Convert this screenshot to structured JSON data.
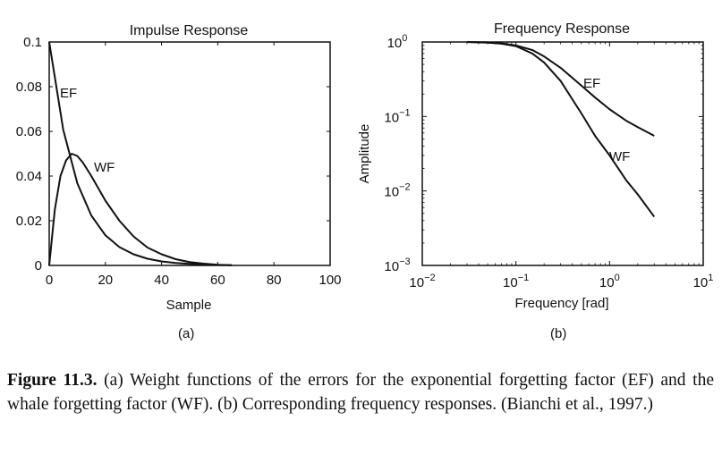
{
  "chart_data": [
    {
      "type": "line",
      "title": "Impulse Response",
      "xlabel": "Sample",
      "ylabel": "",
      "panel_label": "(a)",
      "xlim": [
        0,
        100
      ],
      "ylim": [
        0,
        0.1
      ],
      "xticks": [
        "0",
        "20",
        "40",
        "60",
        "80",
        "100"
      ],
      "yticks": [
        "0",
        "0.02",
        "0.04",
        "0.06",
        "0.08",
        "0.1"
      ],
      "grid": false,
      "legend": "none",
      "annotations": [
        "EF",
        "WF"
      ],
      "series": [
        {
          "name": "EF",
          "x": [
            0,
            5,
            10,
            15,
            20,
            25,
            30,
            35,
            40,
            45,
            50,
            55,
            60,
            65
          ],
          "y": [
            0.1,
            0.0607,
            0.0368,
            0.0223,
            0.0135,
            0.0082,
            0.005,
            0.003,
            0.0018,
            0.0011,
            0.0007,
            0.0004,
            0.0002,
            0.0001
          ]
        },
        {
          "name": "WF",
          "x": [
            0,
            2,
            4,
            6,
            8,
            10,
            12,
            15,
            20,
            25,
            30,
            35,
            40,
            45,
            50,
            55,
            60,
            65
          ],
          "y": [
            0,
            0.025,
            0.04,
            0.047,
            0.05,
            0.049,
            0.046,
            0.04,
            0.029,
            0.02,
            0.013,
            0.008,
            0.005,
            0.0028,
            0.0015,
            0.0008,
            0.0003,
            0.0001
          ]
        }
      ]
    },
    {
      "type": "line",
      "title": "Frequency Response",
      "xlabel": "Frequency [rad]",
      "ylabel": "Amplitude",
      "panel_label": "(b)",
      "xscale": "log",
      "yscale": "log",
      "xlim": [
        0.01,
        10
      ],
      "ylim": [
        0.001,
        1
      ],
      "xticks": [
        {
          "base": "10",
          "exp": "−2"
        },
        {
          "base": "10",
          "exp": "−1"
        },
        {
          "base": "10",
          "exp": "0"
        },
        {
          "base": "10",
          "exp": "1"
        }
      ],
      "yticks": [
        {
          "base": "10",
          "exp": "−3"
        },
        {
          "base": "10",
          "exp": "−2"
        },
        {
          "base": "10",
          "exp": "−1"
        },
        {
          "base": "10",
          "exp": "0"
        }
      ],
      "grid": false,
      "legend": "none",
      "annotations": [
        "EF",
        "WF"
      ],
      "series": [
        {
          "name": "EF",
          "x": [
            0.03,
            0.05,
            0.07,
            0.1,
            0.15,
            0.2,
            0.3,
            0.5,
            0.7,
            1.0,
            1.5,
            2.0,
            3.0
          ],
          "y": [
            1.0,
            0.99,
            0.96,
            0.9,
            0.78,
            0.64,
            0.45,
            0.26,
            0.18,
            0.125,
            0.088,
            0.072,
            0.055
          ]
        },
        {
          "name": "WF",
          "x": [
            0.03,
            0.05,
            0.07,
            0.1,
            0.15,
            0.2,
            0.3,
            0.5,
            0.7,
            1.0,
            1.5,
            2.0,
            3.0
          ],
          "y": [
            1.0,
            0.98,
            0.95,
            0.88,
            0.7,
            0.53,
            0.3,
            0.11,
            0.055,
            0.03,
            0.014,
            0.009,
            0.0045
          ]
        }
      ]
    }
  ],
  "caption": {
    "label": "Figure 11.3.",
    "text": "(a) Weight functions of the errors for the exponential forgetting factor (EF) and the whale forgetting factor (WF). (b) Corresponding frequency responses. (Bianchi et al., 1997.)"
  }
}
